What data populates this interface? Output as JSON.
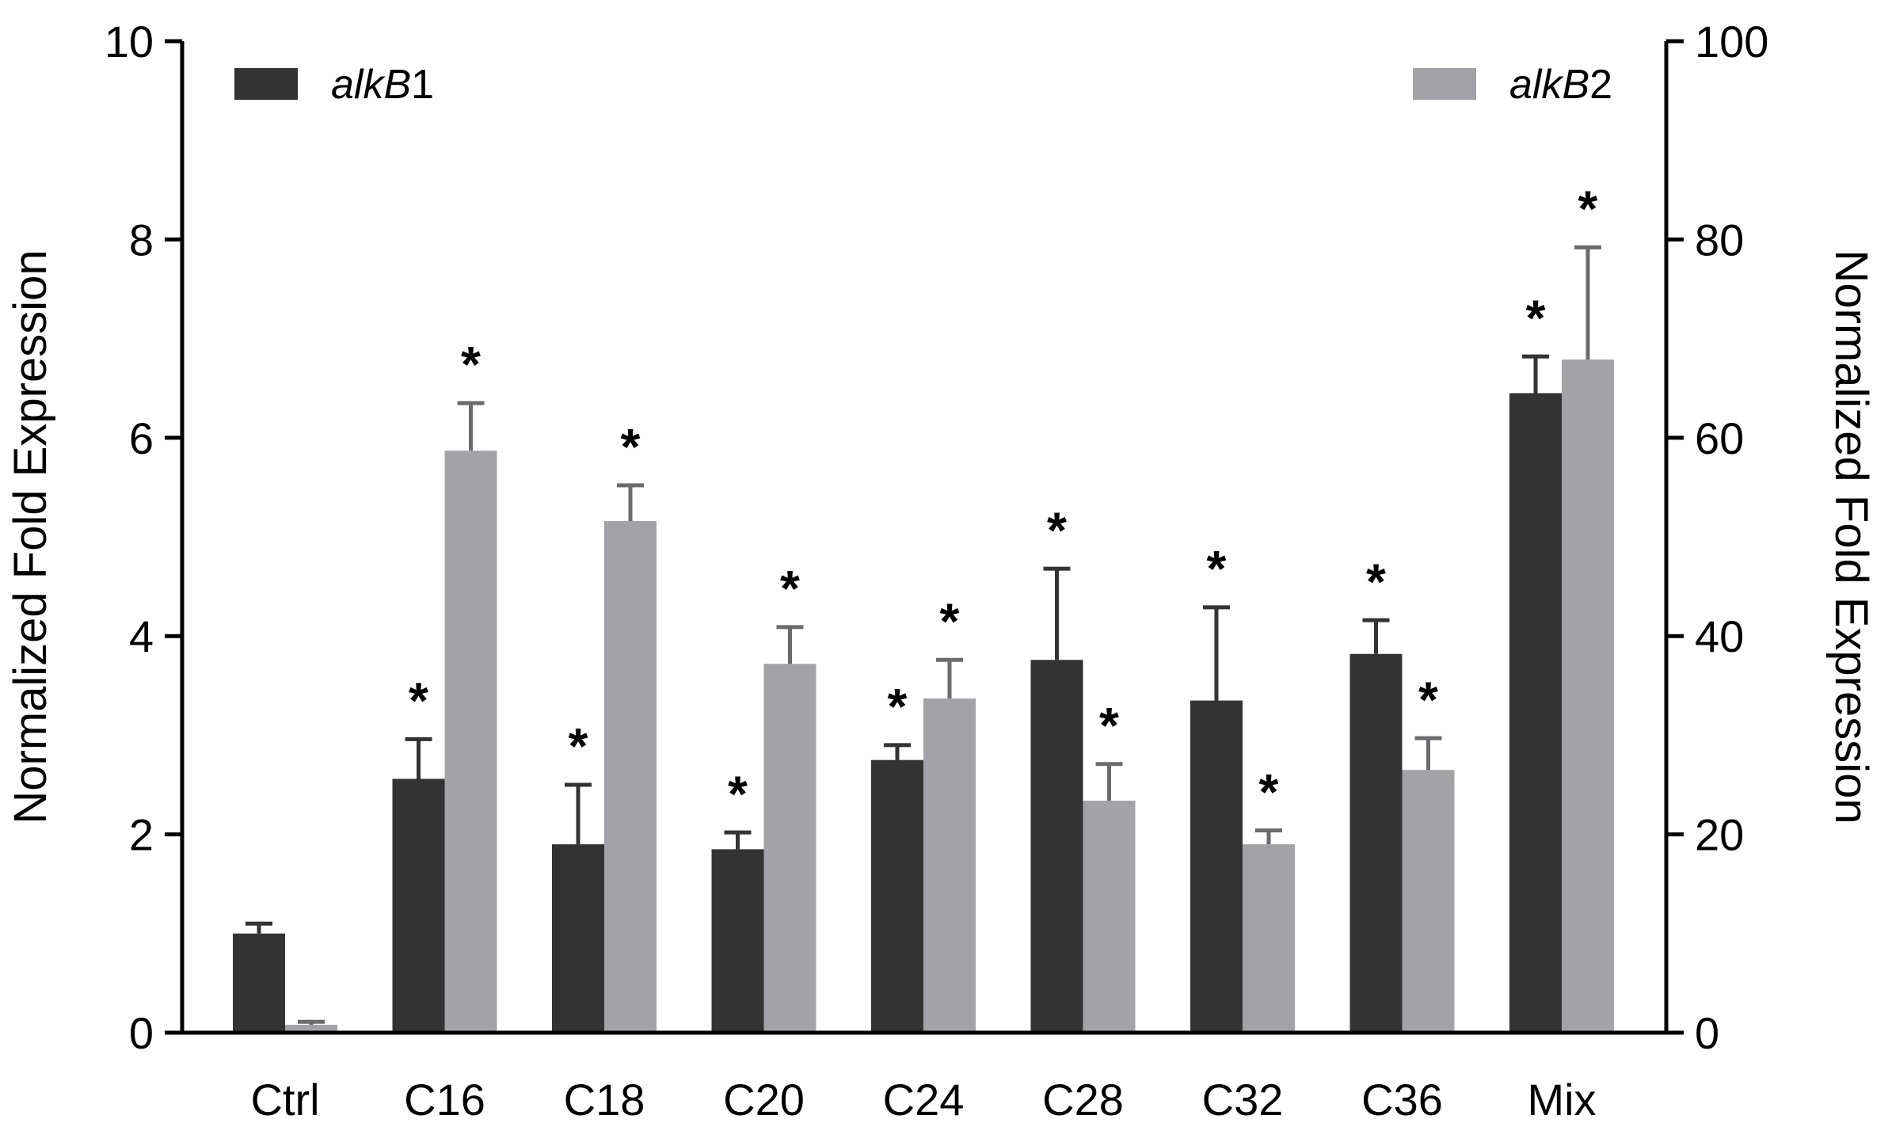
{
  "chart_data": {
    "type": "bar",
    "categories": [
      "Ctrl",
      "C16",
      "C18",
      "C20",
      "C24",
      "C28",
      "C32",
      "C36",
      "Mix"
    ],
    "ylabel": "Normalized Fold Expression",
    "y2label": "Normalized Fold Expression",
    "ylim": [
      0,
      10
    ],
    "y2lim": [
      0,
      100
    ],
    "yticks": [
      "0",
      "2",
      "4",
      "6",
      "8",
      "10"
    ],
    "y2ticks": [
      "0",
      "20",
      "40",
      "60",
      "80",
      "100"
    ],
    "legend_placement": "top",
    "series": [
      {
        "name_italic": "alkB",
        "name_suffix": "1",
        "axis": "left",
        "color": "#333333",
        "values": [
          1.0,
          2.56,
          1.9,
          1.85,
          2.75,
          3.76,
          3.35,
          3.82,
          6.45
        ],
        "errors": [
          0.1,
          0.4,
          0.6,
          0.17,
          0.15,
          0.92,
          0.94,
          0.34,
          0.37
        ],
        "significant": [
          false,
          true,
          true,
          true,
          true,
          true,
          true,
          true,
          true
        ]
      },
      {
        "name_italic": "alkB",
        "name_suffix": "2",
        "axis": "right",
        "color": "#a3a3a7",
        "values": [
          0.8,
          58.7,
          51.6,
          37.2,
          33.7,
          23.4,
          19.0,
          26.5,
          67.9
        ],
        "errors": [
          0.3,
          4.8,
          3.6,
          3.7,
          3.9,
          3.7,
          1.4,
          3.2,
          11.3
        ],
        "significant": [
          false,
          true,
          true,
          true,
          true,
          true,
          true,
          true,
          true
        ]
      }
    ],
    "significance_marker": "*"
  }
}
